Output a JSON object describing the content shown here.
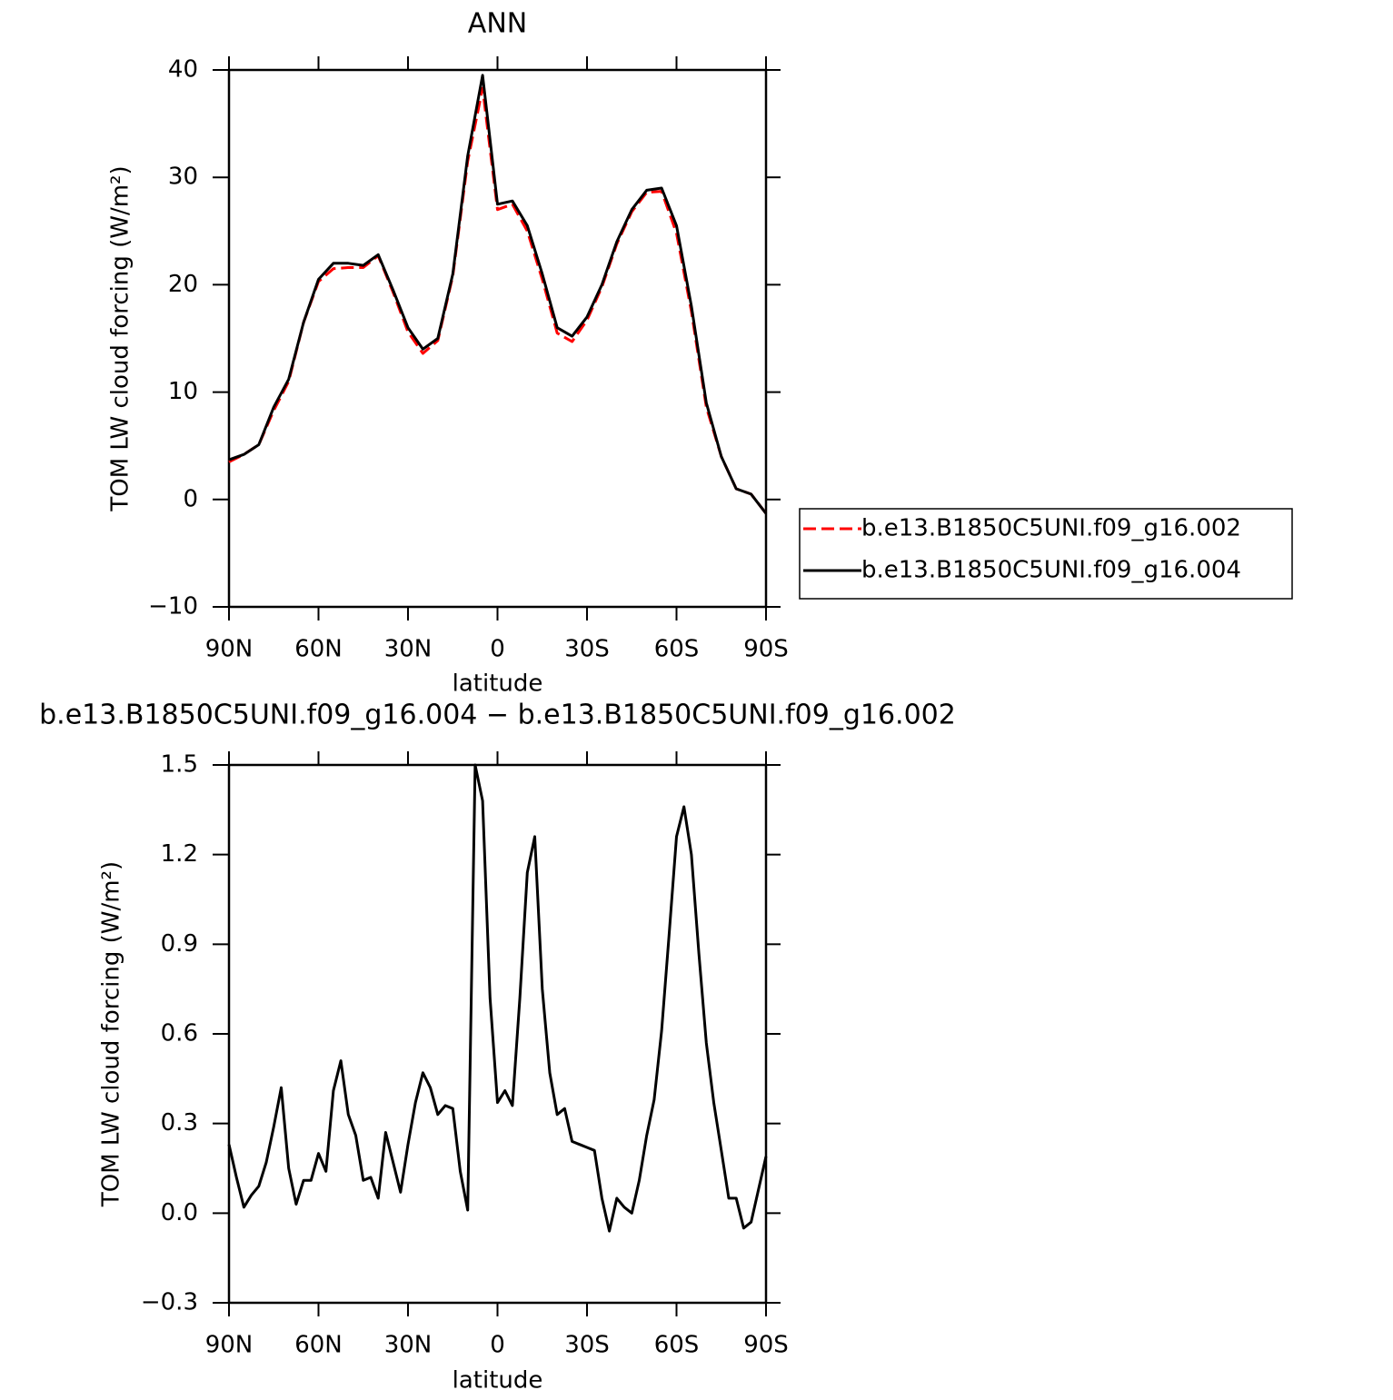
{
  "chart_data": [
    {
      "type": "line",
      "title": "ANN",
      "xlabel": "latitude",
      "ylabel": "TOM LW cloud forcing (W/m²)",
      "x": [
        90,
        85,
        80,
        75,
        70,
        65,
        60,
        55,
        50,
        45,
        40,
        35,
        30,
        25,
        20,
        15,
        10,
        5,
        0,
        -5,
        -10,
        -15,
        -20,
        -25,
        -30,
        -35,
        -40,
        -45,
        -50,
        -55,
        -60,
        -65,
        -70,
        -75,
        -80,
        -85,
        -90
      ],
      "xlim": [
        90,
        -90
      ],
      "xticks": [
        {
          "value": 90,
          "label": "90N"
        },
        {
          "value": 60,
          "label": "60N"
        },
        {
          "value": 30,
          "label": "30N"
        },
        0,
        {
          "value": -30,
          "label": "30S"
        },
        {
          "value": -60,
          "label": "60S"
        },
        {
          "value": -90,
          "label": "90S"
        }
      ],
      "ylim": [
        -10,
        40
      ],
      "yticks": [
        {
          "value": -10,
          "label": "−10"
        },
        0,
        10,
        20,
        30,
        40
      ],
      "legend": "outside-right",
      "series": [
        {
          "name": "b.e13.B1850C5UNI.f09_g16.002",
          "color": "#ff0000",
          "dash": true,
          "values": [
            3.5,
            4.2,
            5.1,
            8.3,
            11,
            16.5,
            20.3,
            21.5,
            21.6,
            21.6,
            22.7,
            19.3,
            15.6,
            13.6,
            14.8,
            20.8,
            31.5,
            38.3,
            27,
            27.5,
            25,
            20.5,
            15.5,
            14.7,
            16.7,
            19.8,
            23.8,
            26.8,
            28.6,
            28.7,
            24.8,
            17.5,
            8.6,
            4,
            1,
            0.5,
            -1.3
          ]
        },
        {
          "name": "b.e13.B1850C5UNI.f09_g16.004",
          "color": "#000000",
          "dash": false,
          "values": [
            3.7,
            4.2,
            5.1,
            8.6,
            11.2,
            16.5,
            20.5,
            22,
            22,
            21.8,
            22.8,
            19.5,
            16,
            14,
            15,
            21,
            32,
            39.5,
            27.5,
            27.8,
            25.5,
            21,
            16,
            15.2,
            17,
            20,
            24,
            27,
            28.8,
            29,
            25.5,
            18,
            9,
            4,
            1,
            0.5,
            -1.3
          ]
        }
      ]
    },
    {
      "type": "line",
      "title": "b.e13.B1850C5UNI.f09_g16.004 − b.e13.B1850C5UNI.f09_g16.002",
      "xlabel": "latitude",
      "ylabel": "TOM LW cloud forcing (W/m²)",
      "x": [
        90,
        87.5,
        85,
        82.5,
        80,
        77.5,
        75,
        72.5,
        70,
        67.5,
        65,
        62.5,
        60,
        57.5,
        55,
        52.5,
        50,
        47.5,
        45,
        42.5,
        40,
        37.5,
        35,
        32.5,
        30,
        27.5,
        25,
        22.5,
        20,
        17.5,
        15,
        12.5,
        10,
        7.5,
        5,
        2.5,
        0,
        -2.5,
        -5,
        -7.5,
        -10,
        -12.5,
        -15,
        -17.5,
        -20,
        -22.5,
        -25,
        -27.5,
        -30,
        -32.5,
        -35,
        -37.5,
        -40,
        -42.5,
        -45,
        -47.5,
        -50,
        -52.5,
        -55,
        -57.5,
        -60,
        -62.5,
        -65,
        -67.5,
        -70,
        -72.5,
        -75,
        -77.5,
        -80,
        -82.5,
        -85,
        -87.5,
        -90
      ],
      "xlim": [
        90,
        -90
      ],
      "xticks": [
        {
          "value": 90,
          "label": "90N"
        },
        {
          "value": 60,
          "label": "60N"
        },
        {
          "value": 30,
          "label": "30N"
        },
        0,
        {
          "value": -30,
          "label": "30S"
        },
        {
          "value": -60,
          "label": "60S"
        },
        {
          "value": -90,
          "label": "90S"
        }
      ],
      "ylim": [
        -0.3,
        1.5
      ],
      "yticks": [
        {
          "value": -0.3,
          "label": "−0.3"
        },
        {
          "value": 0,
          "label": "0.0"
        },
        0.3,
        0.6,
        0.9,
        1.2,
        1.5
      ],
      "series": [
        {
          "color": "#000000",
          "dash": false,
          "values": [
            0.23,
            0.12,
            0.02,
            0.06,
            0.09,
            0.17,
            0.29,
            0.42,
            0.15,
            0.03,
            0.11,
            0.11,
            0.2,
            0.14,
            0.41,
            0.51,
            0.33,
            0.26,
            0.11,
            0.12,
            0.05,
            0.27,
            0.17,
            0.07,
            0.23,
            0.37,
            0.47,
            0.42,
            0.33,
            0.36,
            0.35,
            0.14,
            0.01,
            1.5,
            1.38,
            0.72,
            0.37,
            0.41,
            0.36,
            0.72,
            1.14,
            1.26,
            0.75,
            0.47,
            0.33,
            0.35,
            0.24,
            0.23,
            0.22,
            0.21,
            0.05,
            -0.06,
            0.05,
            0.02,
            0,
            0.11,
            0.26,
            0.38,
            0.61,
            0.93,
            1.26,
            1.36,
            1.2,
            0.87,
            0.57,
            0.37,
            0.21,
            0.05,
            0.05,
            -0.05,
            -0.03,
            0.08,
            0.19
          ]
        }
      ]
    }
  ]
}
